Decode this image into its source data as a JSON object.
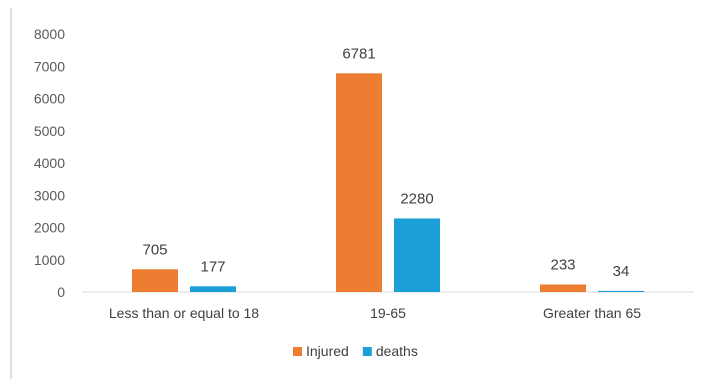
{
  "chart_data": {
    "type": "bar",
    "title": "",
    "xlabel": "",
    "ylabel": "",
    "categories": [
      "Less than or equal to 18",
      "19-65",
      "Greater than 65"
    ],
    "series": [
      {
        "name": "Injured",
        "values": [
          705,
          6781,
          233
        ],
        "color": "#ED7D31"
      },
      {
        "name": "deaths",
        "values": [
          177,
          2280,
          34
        ],
        "color": "#1B9FD6"
      }
    ],
    "ylim": [
      0,
      8000
    ],
    "yticks": [
      0,
      1000,
      2000,
      3000,
      4000,
      5000,
      6000,
      7000,
      8000
    ],
    "grid": false,
    "legend": "bottom-center",
    "colors": {
      "axis": "#d9d9d9",
      "frame": "#bfbfbf"
    }
  }
}
